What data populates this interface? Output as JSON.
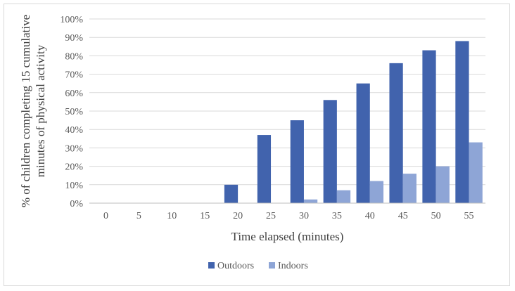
{
  "chart_data": {
    "type": "bar",
    "title": "",
    "xlabel": "Time elapsed (minutes)",
    "ylabel_lines": [
      "% of children completing 15 cumulative",
      "minutes of physical activity"
    ],
    "categories": [
      "0",
      "5",
      "10",
      "15",
      "20",
      "25",
      "30",
      "35",
      "40",
      "45",
      "50",
      "55"
    ],
    "series": [
      {
        "name": "Outdoors",
        "color": "#4163ad",
        "values": [
          0,
          0,
          0,
          0,
          10,
          37,
          45,
          56,
          65,
          76,
          83,
          88
        ]
      },
      {
        "name": "Indoors",
        "color": "#8ea5d6",
        "values": [
          0,
          0,
          0,
          0,
          0,
          0,
          2,
          7,
          12,
          16,
          20,
          33
        ]
      }
    ],
    "ylim": [
      0,
      100
    ],
    "yticks": [
      0,
      10,
      20,
      30,
      40,
      50,
      60,
      70,
      80,
      90,
      100
    ],
    "ytick_suffix": "%",
    "grid": true,
    "legend_position": "bottom"
  }
}
